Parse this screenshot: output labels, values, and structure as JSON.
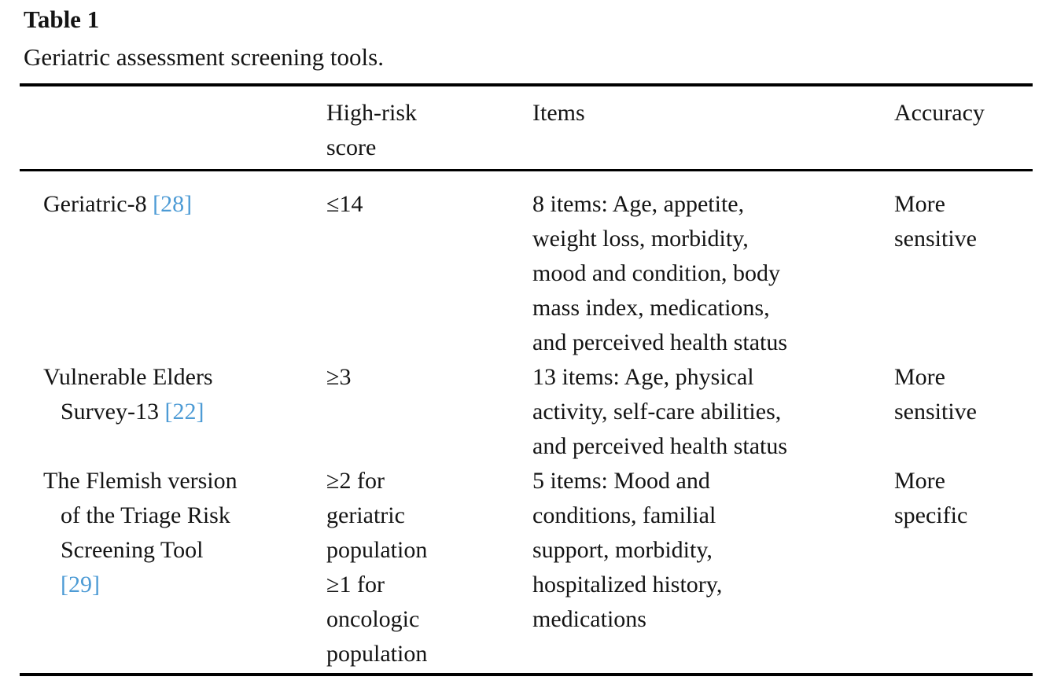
{
  "table": {
    "label": "Table 1",
    "caption": "Geriatric assessment screening tools.",
    "text_color": "#141414",
    "rule_color": "#000000",
    "citation_color": "#4d9bd5",
    "header": {
      "tool": "",
      "score_lines": [
        "High-risk",
        "score"
      ],
      "items": "Items",
      "accuracy": "Accuracy"
    },
    "rows": [
      {
        "tool_lines": [
          {
            "text": "Geriatric-8 ",
            "cite": "[28]",
            "indent": false
          }
        ],
        "score_lines": [
          "≤14"
        ],
        "items_lines": [
          "8 items: Age, appetite,",
          "weight loss, morbidity,",
          "mood and condition, body",
          "mass index, medications,",
          "and perceived health status"
        ],
        "accuracy_lines": [
          "More",
          "sensitive"
        ]
      },
      {
        "tool_lines": [
          {
            "text": "Vulnerable Elders",
            "indent": false
          },
          {
            "text": "Survey-13 ",
            "cite": "[22]",
            "indent": true
          }
        ],
        "score_lines": [
          "≥3"
        ],
        "items_lines": [
          "13 items: Age, physical",
          "activity, self-care abilities,",
          "and perceived health status"
        ],
        "accuracy_lines": [
          "More",
          "sensitive"
        ]
      },
      {
        "tool_lines": [
          {
            "text": "The Flemish version",
            "indent": false
          },
          {
            "text": "of the Triage Risk",
            "indent": true
          },
          {
            "text": "Screening Tool",
            "indent": true
          },
          {
            "text": "",
            "cite": "[29]",
            "indent": true
          }
        ],
        "score_lines": [
          "≥2 for",
          "geriatric",
          "population",
          "≥1 for",
          "oncologic",
          "population"
        ],
        "items_lines": [
          "5 items: Mood and",
          "conditions, familial",
          "support, morbidity,",
          "hospitalized history,",
          "medications"
        ],
        "accuracy_lines": [
          "More",
          "specific"
        ]
      }
    ]
  }
}
